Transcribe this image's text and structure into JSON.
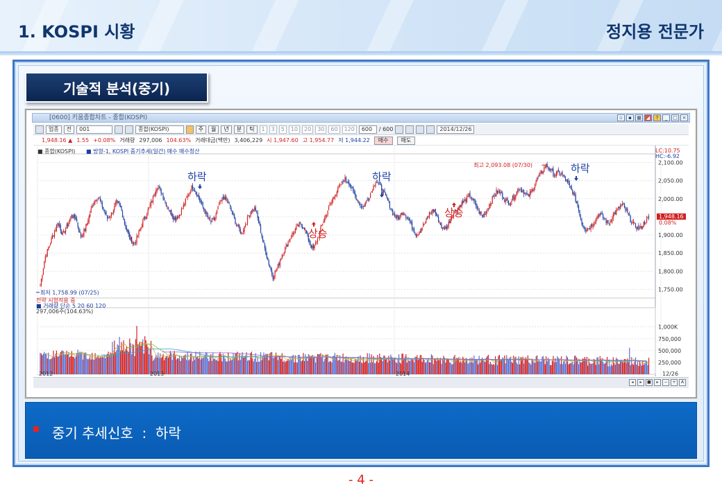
{
  "header": {
    "title_left": "1. KOSPI 시황",
    "title_right": "정지용 전문가"
  },
  "section": {
    "tab_label": "기술적 분석(중기)"
  },
  "hts": {
    "window_title": "[0600] 키움종합차트 - 종합(KOSPI)",
    "toolbar": {
      "market": "업종",
      "period_label": "전",
      "code": "001",
      "name": "종합(KOSPI)",
      "period_buttons": [
        "주",
        "월",
        "년",
        "분",
        "틱"
      ],
      "minute_buttons": [
        "1",
        "3",
        "5",
        "10",
        "20",
        "30",
        "60",
        "120"
      ],
      "count_value": "600",
      "count_total": "/ 600",
      "date": "2014/12/26"
    },
    "quote": {
      "price": "1,948.16 ▲",
      "change": "1.55",
      "change_pct": "+0.08%",
      "volume_label": "거래량",
      "volume": "297,006",
      "volume_pct": "104.63%",
      "amount_label": "거래대금(백만)",
      "amount": "3,406,229",
      "open": "시 1,947.60",
      "high": "고 1,954.77",
      "low": "저 1,944.22",
      "buy_btn": "매수",
      "sell_btn": "매도"
    },
    "legend": {
      "series": "■ 종합(KOSPI)",
      "indicator": "■ 방향-1, KOSPI 중기추세(일간) 매수  매수청산"
    },
    "price_scale": {
      "lc": "LC:10.75",
      "hc": "HC:-6.92",
      "current": "1,948.16",
      "current_pct": "0.08%"
    },
    "volume_legend": {
      "strategy_text": "전략 시험적용 중",
      "label": "■ 거래량  단순 5  20  60  120",
      "value": "297,006주(104.63%)"
    },
    "annotations": {
      "high_note": "최고 2,093.08 (07/30)",
      "low_note": "최저 1,758.99 (07/25)",
      "signals": [
        "하락",
        "상승",
        "하락",
        "상승",
        "하락"
      ]
    },
    "bottom_right_date": "12/26"
  },
  "chart_data": {
    "type": "candlestick",
    "title": "종합(KOSPI)",
    "x_labels": [
      "2012",
      "2013",
      "2014",
      "12/26"
    ],
    "y_ticks": [
      1750,
      1800,
      1850,
      1900,
      1950,
      2000,
      2050,
      2100
    ],
    "y_tick_labels": [
      "1,750.00",
      "1,800.00",
      "1,850.00",
      "1,900.00",
      "1,950.00",
      "2,000.00",
      "2,050.00",
      "2,100.00"
    ],
    "ylim": [
      1730,
      2120
    ],
    "close_series": [
      1762,
      1835,
      1870,
      1905,
      1935,
      1900,
      1925,
      1955,
      1945,
      1895,
      1915,
      1955,
      1995,
      2005,
      1975,
      1945,
      1960,
      1990,
      1975,
      1925,
      1890,
      1875,
      1905,
      1940,
      1965,
      1995,
      2035,
      2020,
      1990,
      1965,
      1945,
      1955,
      1980,
      2010,
      2035,
      2015,
      1985,
      1960,
      1935,
      1945,
      1985,
      2005,
      1990,
      1955,
      1925,
      1905,
      1935,
      1965,
      1975,
      1925,
      1870,
      1825,
      1785,
      1810,
      1845,
      1870,
      1895,
      1915,
      1930,
      1920,
      1885,
      1860,
      1890,
      1930,
      1960,
      1990,
      2015,
      2035,
      2055,
      2045,
      2015,
      1995,
      1975,
      1995,
      2020,
      2050,
      2035,
      2010,
      1985,
      1955,
      1945,
      1965,
      1950,
      1925,
      1900,
      1915,
      1935,
      1960,
      1970,
      1940,
      1915,
      1925,
      1955,
      1970,
      1985,
      1995,
      2010,
      1990,
      1965,
      1950,
      1975,
      2000,
      2020,
      2015,
      1995,
      1990,
      2010,
      2030,
      2020,
      2005,
      2025,
      2055,
      2070,
      2093,
      2080,
      2065,
      2075,
      2060,
      2040,
      2020,
      1985,
      1935,
      1915,
      1925,
      1940,
      1960,
      1945,
      1930,
      1955,
      1970,
      1985,
      1965,
      1940,
      1925,
      1915,
      1935,
      1948
    ],
    "volume_ticks": [
      "1,000K",
      "750,000",
      "500,000",
      "250,000"
    ],
    "volume_ylim": [
      0,
      1200000
    ]
  },
  "conclusion": {
    "text": "중기 추세신호  :  하락"
  },
  "page_number": "- 4 -",
  "colors": {
    "header_title": "#10366e",
    "up": "#d22020",
    "down": "#1d3fa0",
    "accent_blue": "#0d6bc7",
    "page_number": "#e02020"
  }
}
